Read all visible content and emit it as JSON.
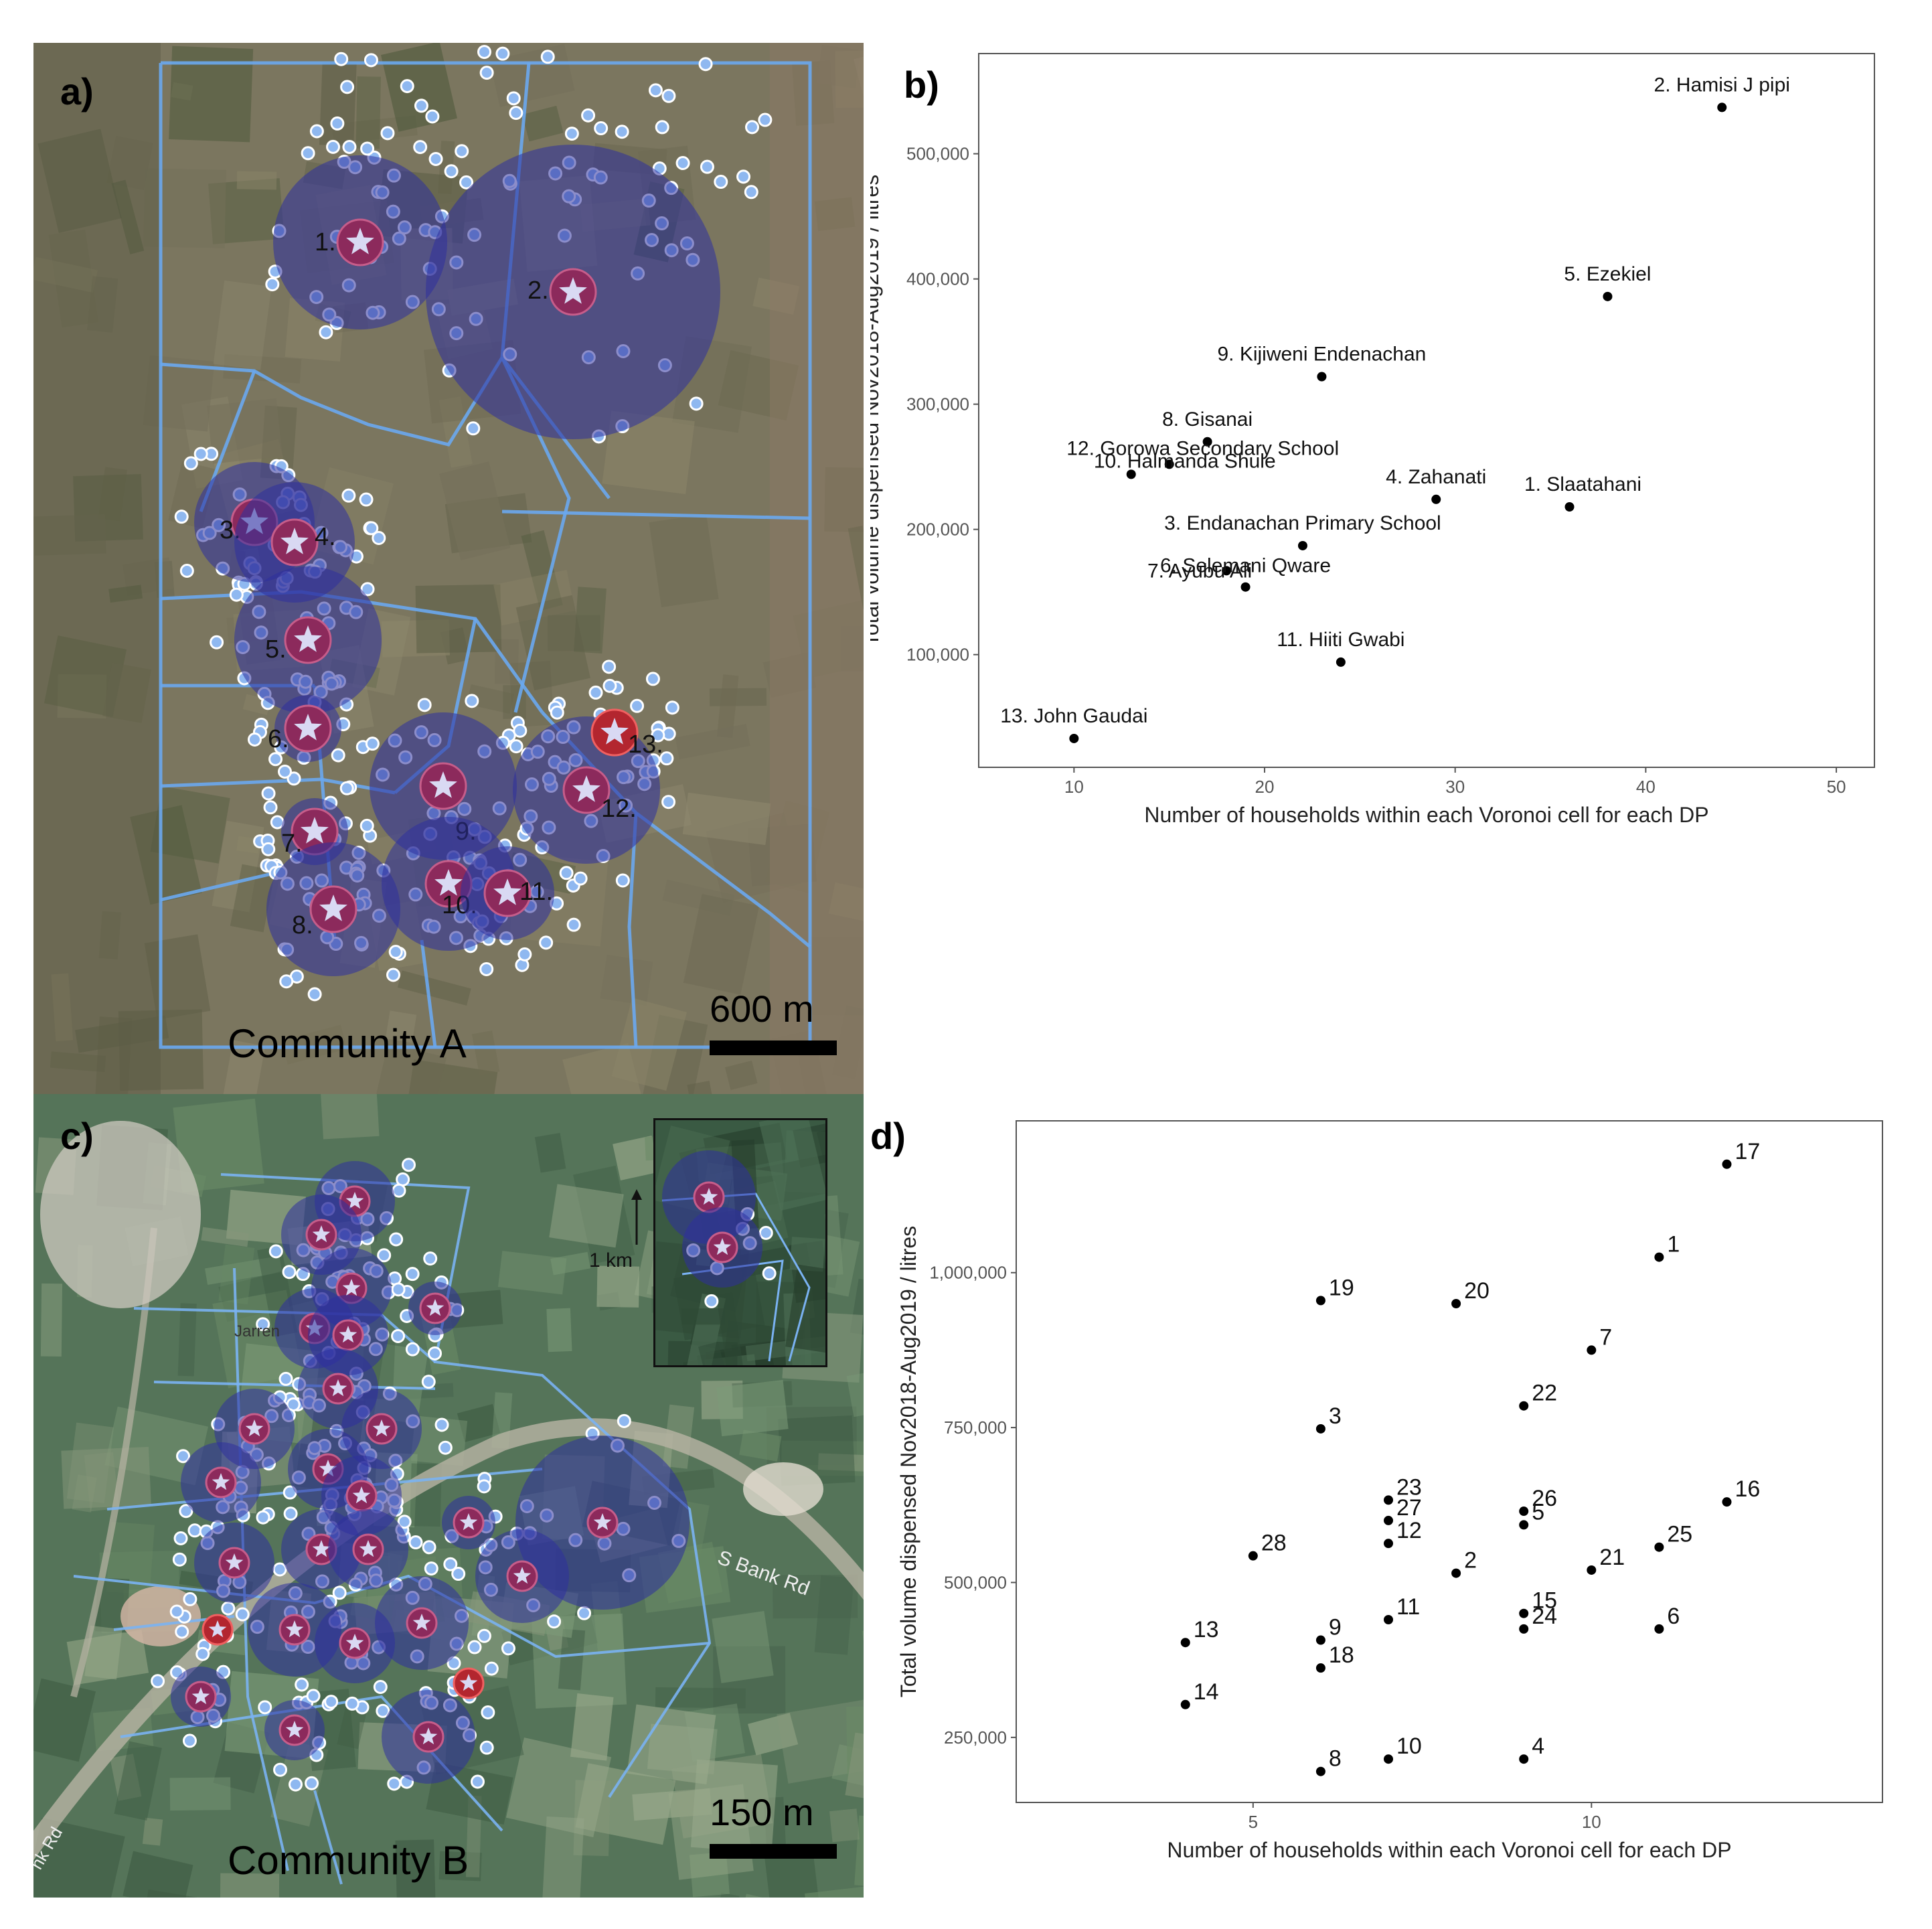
{
  "panels": {
    "a": {
      "label": "a)",
      "community": "Community A",
      "scale_label": "600 m",
      "dp_labels": [
        "1.",
        "2.",
        "3.",
        "4.",
        "5.",
        "6.",
        "7.",
        "8.",
        "9.",
        "10.",
        "11.",
        "12.",
        "13."
      ]
    },
    "b": {
      "label": "b)"
    },
    "c": {
      "label": "c)",
      "community": "Community B",
      "scale_label": "150 m",
      "inset_scale": "1 km",
      "road_label": "S Bank Rd",
      "road_label2": "nk Rd",
      "place_label": "Jarren"
    },
    "d": {
      "label": "d)"
    }
  },
  "chart_data": [
    {
      "type": "scatter",
      "panel": "b",
      "xlabel": "Number of households within each Voronoi cell for each DP",
      "ylabel": "Total volume dispensed Nov2018-Aug2019 / litres",
      "xlim": [
        5,
        52
      ],
      "ylim": [
        10000,
        580000
      ],
      "xticks": [
        10,
        20,
        30,
        40,
        50
      ],
      "yticks": [
        100000,
        200000,
        300000,
        400000,
        500000
      ],
      "ytick_labels": [
        "100,000",
        "200,000",
        "300,000",
        "400,000",
        "500,000"
      ],
      "grid": false,
      "points": [
        {
          "x": 44,
          "y": 537000,
          "label": "2. Hamisi J pipi"
        },
        {
          "x": 38,
          "y": 386000,
          "label": "5. Ezekiel"
        },
        {
          "x": 23,
          "y": 322000,
          "label": "9. Kijiweni Endenachan"
        },
        {
          "x": 17,
          "y": 270000,
          "label": "8. Gisanai"
        },
        {
          "x": 15,
          "y": 252000,
          "label": "12. Gorowa Secondary School"
        },
        {
          "x": 13,
          "y": 244000,
          "label": "10. Halmanda Shule"
        },
        {
          "x": 29,
          "y": 224000,
          "label": "4. Zahanati"
        },
        {
          "x": 36,
          "y": 218000,
          "label": "1. Slaatahani"
        },
        {
          "x": 22,
          "y": 187000,
          "label": "3. Endanachan Primary School"
        },
        {
          "x": 18,
          "y": 167000,
          "label": "7. Ayubu Ali"
        },
        {
          "x": 19,
          "y": 154000,
          "label": "6. Selemani Qware"
        },
        {
          "x": 24,
          "y": 94000,
          "label": "11. Hiiti Gwabi"
        },
        {
          "x": 10,
          "y": 33000,
          "label": "13. John Gaudai"
        }
      ]
    },
    {
      "type": "scatter",
      "panel": "d",
      "xlabel": "Number of households within each Voronoi cell for each DP",
      "ylabel": "Total volume dispensed Nov2018-Aug2019 / litres",
      "xlim": [
        1.5,
        14.3
      ],
      "ylim": [
        145000,
        1245000
      ],
      "xticks": [
        5,
        10
      ],
      "yticks": [
        250000,
        500000,
        750000,
        1000000
      ],
      "ytick_labels": [
        "250,000",
        "500,000",
        "750,000",
        "1,000,000"
      ],
      "grid": false,
      "points": [
        {
          "x": 12,
          "y": 1175000,
          "label": "17"
        },
        {
          "x": 11,
          "y": 1025000,
          "label": "1"
        },
        {
          "x": 6,
          "y": 955000,
          "label": "19"
        },
        {
          "x": 8,
          "y": 950000,
          "label": "20"
        },
        {
          "x": 10,
          "y": 875000,
          "label": "7"
        },
        {
          "x": 9,
          "y": 785000,
          "label": "22"
        },
        {
          "x": 6,
          "y": 748000,
          "label": "3"
        },
        {
          "x": 7,
          "y": 633000,
          "label": "23"
        },
        {
          "x": 12,
          "y": 630000,
          "label": "16"
        },
        {
          "x": 9,
          "y": 615000,
          "label": "26"
        },
        {
          "x": 7,
          "y": 600000,
          "label": "27"
        },
        {
          "x": 9,
          "y": 593000,
          "label": "5"
        },
        {
          "x": 7,
          "y": 563000,
          "label": "12"
        },
        {
          "x": 11,
          "y": 557000,
          "label": "25"
        },
        {
          "x": 5,
          "y": 543000,
          "label": "28"
        },
        {
          "x": 10,
          "y": 520000,
          "label": "21"
        },
        {
          "x": 8,
          "y": 515000,
          "label": "2"
        },
        {
          "x": 9,
          "y": 450000,
          "label": "15"
        },
        {
          "x": 7,
          "y": 440000,
          "label": "11"
        },
        {
          "x": 11,
          "y": 425000,
          "label": "6"
        },
        {
          "x": 9,
          "y": 425000,
          "label": "24"
        },
        {
          "x": 6,
          "y": 407000,
          "label": "9"
        },
        {
          "x": 4,
          "y": 403000,
          "label": "13"
        },
        {
          "x": 6,
          "y": 362000,
          "label": "18"
        },
        {
          "x": 4,
          "y": 303000,
          "label": "14"
        },
        {
          "x": 7,
          "y": 215000,
          "label": "10"
        },
        {
          "x": 9,
          "y": 215000,
          "label": "4"
        },
        {
          "x": 6,
          "y": 195000,
          "label": "8"
        }
      ]
    }
  ]
}
